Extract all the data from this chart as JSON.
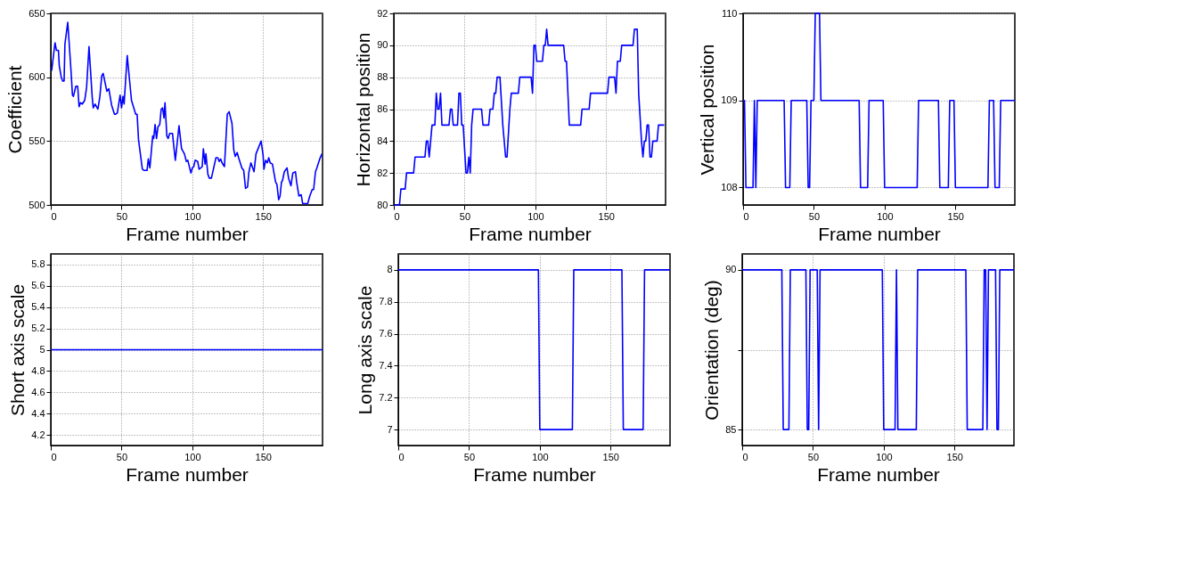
{
  "chart_data": [
    {
      "type": "line",
      "ylabel": "Coefficient",
      "xlabel": "Frame number",
      "xlim": [
        0,
        192
      ],
      "xticks": [
        0,
        50,
        100,
        150
      ],
      "ylim": [
        500,
        650
      ],
      "yticks": [
        500,
        550,
        600,
        650
      ],
      "grid": true,
      "line_style": "solid",
      "x": [
        0.6,
        3,
        4,
        5.4,
        6,
        7.4,
        8.4,
        9.4,
        10,
        12,
        14.3,
        15.3,
        16,
        17.7,
        19,
        20,
        21,
        22.3,
        24,
        25.3,
        27,
        29.3,
        30,
        31.3,
        33.3,
        34.7,
        36,
        37,
        39.6,
        41,
        43,
        45,
        45.6,
        47,
        49,
        50,
        51,
        51.8,
        54,
        57,
        60,
        61,
        62,
        64.7,
        66,
        68,
        68.9,
        70,
        72,
        72.7,
        73.7,
        74.7,
        75.7,
        77,
        78,
        79,
        80,
        80.7,
        82,
        82.9,
        84,
        86,
        87,
        88,
        90.6,
        92.4,
        94.4,
        95.8,
        96.8,
        99,
        100,
        101,
        102,
        103.8,
        104.8,
        106,
        107,
        107.8,
        109,
        109.6,
        111,
        112,
        113.5,
        116.7,
        118,
        119,
        120,
        121,
        122.7,
        124.7,
        126,
        128,
        129.3,
        130.3,
        131.7,
        132.7,
        135,
        136.3,
        137.6,
        139,
        140,
        141.4,
        143.6,
        145,
        148.6,
        150,
        150.6,
        151.8,
        153,
        154,
        155,
        156.6,
        158.8,
        159.8,
        161,
        162,
        163,
        163.7,
        165,
        166.9,
        168,
        169.7,
        171,
        172.9,
        173.7,
        175.3,
        176.9,
        178,
        180,
        181.5,
        183,
        184.7,
        185.7,
        187,
        188,
        190,
        191.6
      ],
      "series": [
        {
          "color": "#0000ff",
          "values": [
            605,
            627,
            621,
            621,
            609,
            600,
            597,
            597,
            626,
            643,
            605,
            586,
            585,
            593,
            593,
            577,
            580,
            579,
            582,
            592,
            624,
            584,
            576,
            579,
            575,
            585,
            601,
            603,
            589,
            591,
            578,
            571,
            571,
            572,
            586,
            576,
            585,
            579,
            617,
            582,
            571,
            571,
            551,
            528,
            527,
            527,
            536,
            529,
            554,
            552,
            563,
            552,
            561,
            563,
            575,
            576,
            568,
            580,
            554,
            552,
            556,
            556,
            545,
            535,
            562,
            544,
            540,
            534,
            535,
            525,
            529,
            530,
            535,
            534,
            528,
            529,
            530,
            544,
            532,
            540,
            524,
            521,
            521,
            537,
            537,
            534,
            536,
            533,
            530,
            571,
            573,
            564,
            543,
            538,
            541,
            537,
            529,
            527,
            513,
            514,
            526,
            533,
            526,
            540,
            550,
            539,
            528,
            535,
            533,
            537,
            533,
            532,
            518,
            516,
            504,
            507,
            518,
            519,
            526,
            529,
            521,
            515,
            525,
            526,
            518,
            507,
            508,
            501,
            501,
            501,
            507,
            512,
            512,
            526,
            529,
            536,
            540
          ]
        }
      ]
    },
    {
      "type": "line",
      "ylabel": "Horizontal position",
      "xlabel": "Frame number",
      "xlim": [
        0,
        192
      ],
      "xticks": [
        0,
        50,
        100,
        150
      ],
      "ylim": [
        80,
        92
      ],
      "yticks": [
        80,
        82,
        84,
        86,
        88,
        90,
        92
      ],
      "grid": true,
      "line_style": "solid",
      "x": [
        0,
        4,
        5,
        8,
        9,
        14,
        15,
        22,
        23,
        24,
        25,
        26,
        27,
        29,
        30,
        31,
        32,
        33,
        34,
        39,
        40,
        41,
        42,
        45,
        46,
        47,
        48,
        49,
        51,
        52,
        53,
        54,
        55,
        56,
        62,
        63,
        67,
        68,
        70,
        71,
        72,
        73,
        75,
        77,
        79,
        80,
        82,
        83,
        88,
        89,
        97,
        98,
        99,
        100,
        101,
        105,
        106,
        107,
        108,
        109,
        120,
        121,
        122,
        124,
        132,
        133,
        138,
        139,
        151,
        152,
        156,
        157,
        158,
        160,
        161,
        169,
        170,
        172,
        173,
        175,
        176,
        177,
        178,
        179,
        180,
        181,
        182,
        183,
        186,
        187,
        191
      ],
      "series": [
        {
          "color": "#0000ff",
          "values": [
            80,
            80,
            81,
            81,
            82,
            82,
            83,
            83,
            84,
            84,
            83,
            84,
            85,
            85,
            87,
            86,
            86,
            87,
            85,
            85,
            86,
            86,
            85,
            85,
            87,
            87,
            85,
            85,
            82,
            82,
            83,
            82,
            85,
            86,
            86,
            85,
            85,
            86,
            86,
            87,
            87,
            88,
            88,
            85,
            83,
            83,
            86,
            87,
            87,
            88,
            88,
            87,
            90,
            90,
            89,
            89,
            90,
            90,
            91,
            90,
            90,
            89,
            89,
            85,
            85,
            86,
            86,
            87,
            87,
            88,
            88,
            87,
            89,
            89,
            90,
            90,
            91,
            91,
            87,
            84,
            83,
            84,
            84,
            85,
            85,
            83,
            83,
            84,
            84,
            85,
            85
          ]
        }
      ]
    },
    {
      "type": "line",
      "ylabel": "Vertical position",
      "xlabel": "Frame number",
      "xlim": [
        0,
        192
      ],
      "xticks": [
        0,
        50,
        100,
        150
      ],
      "ylim": [
        107.8,
        110
      ],
      "yticks": [
        108,
        109,
        110
      ],
      "grid": "y",
      "line_style": "solid",
      "x": [
        0,
        1,
        2,
        7,
        8,
        9,
        10,
        29,
        30,
        33,
        34,
        45,
        46,
        47,
        48,
        50,
        51,
        54,
        55,
        82,
        83,
        88,
        89,
        99,
        100,
        123,
        124,
        138,
        139,
        145,
        146,
        149,
        150,
        173,
        174,
        177,
        178,
        181,
        182,
        192
      ],
      "series": [
        {
          "color": "#0000ff",
          "values": [
            109,
            109,
            108,
            108,
            109,
            108,
            109,
            109,
            108,
            108,
            109,
            109,
            108,
            108,
            109,
            109,
            110,
            110,
            109,
            109,
            108,
            108,
            109,
            109,
            108,
            108,
            109,
            109,
            108,
            108,
            109,
            109,
            108,
            108,
            109,
            109,
            108,
            108,
            109,
            109
          ]
        }
      ]
    },
    {
      "type": "line",
      "ylabel": "Short axis scale",
      "xlabel": "Frame number",
      "xlim": [
        0,
        192
      ],
      "xticks": [
        0,
        50,
        100,
        150
      ],
      "ylim": [
        4.1,
        5.9
      ],
      "yticks": [
        4.2,
        4.4,
        4.6,
        4.8,
        5,
        5.2,
        5.4,
        5.6,
        5.8
      ],
      "grid": true,
      "line_style": "solid",
      "x": [
        0,
        192
      ],
      "series": [
        {
          "color": "#0000ff",
          "values": [
            5,
            5
          ]
        }
      ]
    },
    {
      "type": "line",
      "ylabel": "Long axis scale",
      "xlabel": "Frame number",
      "xlim": [
        0,
        192
      ],
      "xticks": [
        0,
        50,
        100,
        150
      ],
      "ylim": [
        6.9,
        8.1
      ],
      "yticks": [
        7,
        7.2,
        7.4,
        7.6,
        7.8,
        8
      ],
      "grid": true,
      "line_style": "solid",
      "x": [
        0,
        99,
        100,
        123,
        124,
        158,
        159,
        173,
        174,
        192
      ],
      "series": [
        {
          "color": "#0000ff",
          "values": [
            8,
            8,
            7,
            7,
            8,
            8,
            7,
            7,
            8,
            8
          ]
        }
      ]
    },
    {
      "type": "line",
      "ylabel": "Orientation (deg)",
      "xlabel": "Frame number",
      "xlim": [
        0,
        192
      ],
      "xticks": [
        0,
        50,
        100,
        150
      ],
      "ylim": [
        84.5,
        90.5
      ],
      "yticks": [
        85,
        {
          "value": 87.5,
          "label": null
        },
        90
      ],
      "grid": true,
      "line_style": "solid",
      "x": [
        0,
        28,
        29,
        33,
        34,
        45,
        46,
        47,
        48,
        53,
        54,
        55,
        99,
        100,
        108,
        109,
        110,
        123,
        124,
        158,
        159,
        170,
        171,
        172,
        173,
        174,
        179,
        180,
        181,
        182,
        192
      ],
      "series": [
        {
          "color": "#0000ff",
          "values": [
            90,
            90,
            85,
            85,
            90,
            90,
            85,
            85,
            90,
            90,
            85,
            90,
            90,
            85,
            85,
            90,
            85,
            85,
            90,
            90,
            85,
            85,
            90,
            90,
            85,
            90,
            90,
            85,
            85,
            90,
            90
          ]
        }
      ]
    }
  ]
}
